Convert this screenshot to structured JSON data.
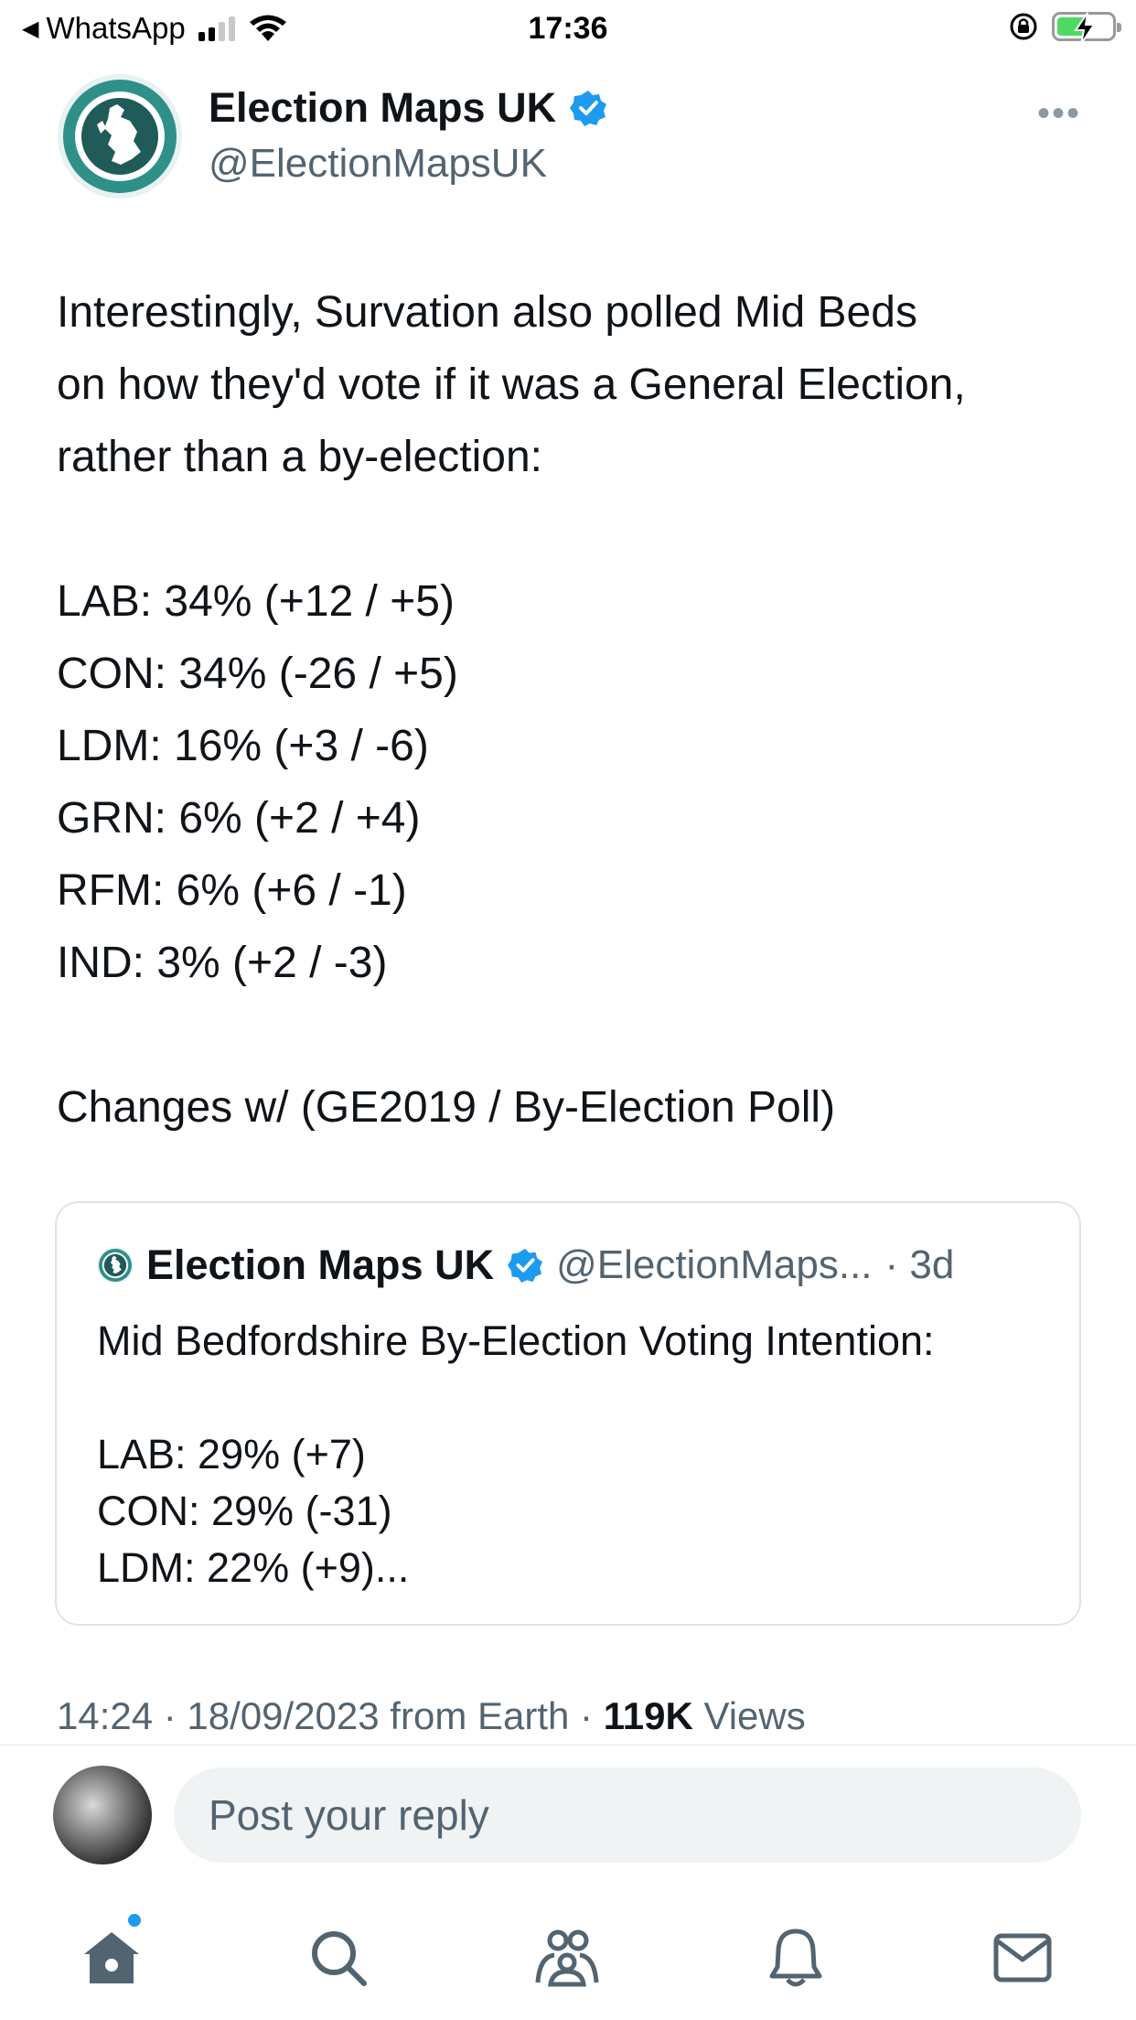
{
  "status_bar": {
    "back_app": "WhatsApp",
    "time": "17:36",
    "battery_charging": true
  },
  "tweet": {
    "author": {
      "name": "Election Maps UK",
      "handle": "@ElectionMapsUK",
      "verified": true
    },
    "lines": [
      "Interestingly, Survation also polled Mid Beds",
      "on how they'd vote if it was a General Election,",
      "rather than a by-election:",
      "",
      "LAB: 34% (+12 / +5)",
      "CON: 34% (-26 / +5)",
      "LDM: 16% (+3 / -6)",
      "GRN: 6% (+2 / +4)",
      "RFM: 6% (+6 / -1)",
      "IND: 3% (+2 / -3)",
      "",
      "Changes w/ (GE2019 / By-Election Poll)"
    ],
    "quoted": {
      "name": "Election Maps UK",
      "handle": "@ElectionMaps...",
      "age": "· 3d",
      "lines": [
        "Mid Bedfordshire By-Election Voting Intention:",
        "",
        "LAB: 29% (+7)",
        "CON: 29% (-31)",
        "LDM: 22% (+9)..."
      ]
    },
    "meta": {
      "time_date": "14:24 · 18/09/2023 from Earth ·",
      "views_count": "119K",
      "views_label": "Views"
    }
  },
  "reply": {
    "placeholder": "Post your reply"
  },
  "icons": {
    "verified": "verified-badge-icon",
    "more": "more-dots-icon",
    "home": "home-icon",
    "search": "search-icon",
    "communities": "communities-icon",
    "notifications": "bell-icon",
    "messages": "mail-icon"
  },
  "colors": {
    "accent": "#1d9bf0",
    "text_primary": "#0f1419",
    "text_secondary": "#536471",
    "logo_teal": "#2f8f8a"
  }
}
